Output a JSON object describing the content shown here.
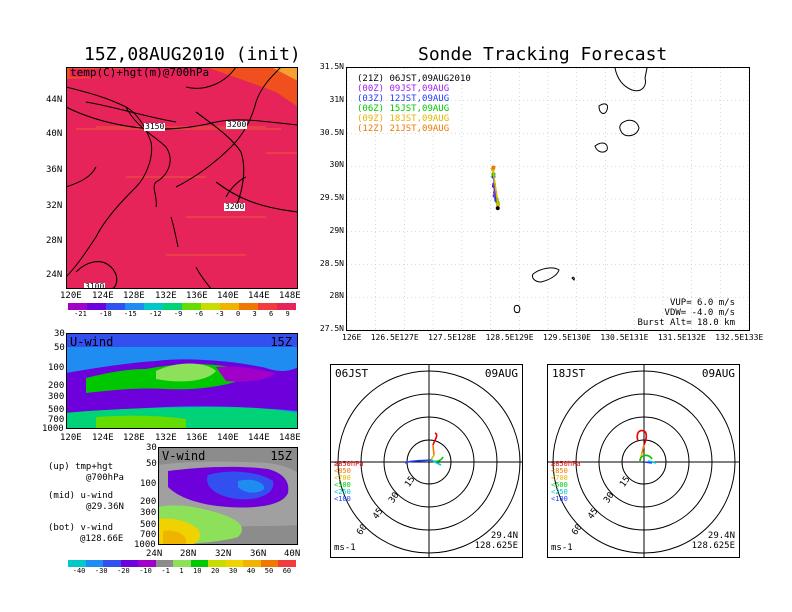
{
  "titles": {
    "left": "15Z,08AUG2010 (init)",
    "right": "Sonde Tracking Forecast"
  },
  "map_panel": {
    "label": "temp(C)+hgt(m)@700hPa",
    "contours": [
      "3150",
      "3200",
      "3200",
      "3100"
    ],
    "lat_ticks": [
      "44N",
      "40N",
      "36N",
      "32N",
      "28N",
      "24N"
    ],
    "lon_ticks": [
      "120E",
      "124E",
      "128E",
      "132E",
      "136E",
      "140E",
      "144E",
      "148E"
    ],
    "colorbar": [
      "-21",
      "-18",
      "-15",
      "-12",
      "-9",
      "-6",
      "-3",
      "0",
      "3",
      "6",
      "9"
    ],
    "colors": {
      "warm": "#e6245a",
      "hot": "#f0501e",
      "orange": "#f5a032"
    }
  },
  "uwind_panel": {
    "label": "U-wind",
    "time": "15Z",
    "p_ticks": [
      "30",
      "50",
      "100",
      "200",
      "300",
      "500",
      "700",
      "1000"
    ],
    "lon_ticks": [
      "120E",
      "124E",
      "128E",
      "132E",
      "136E",
      "140E",
      "144E",
      "148E"
    ]
  },
  "vwind_panel": {
    "label": "V-wind",
    "time": "15Z",
    "p_ticks": [
      "30",
      "50",
      "100",
      "200",
      "300",
      "500",
      "700",
      "1000"
    ],
    "lat_ticks": [
      "24N",
      "28N",
      "32N",
      "36N",
      "40N"
    ],
    "colorbar": [
      "-40",
      "-30",
      "-20",
      "-10",
      "-1",
      "1",
      "10",
      "20",
      "30",
      "40",
      "50",
      "60"
    ]
  },
  "legend_notes": [
    [
      "(up) tmp+hgt",
      "@700hPa"
    ],
    [
      "(mid) u-wind",
      "@29.36N"
    ],
    [
      "(bot) v-wind",
      "@128.66E"
    ]
  ],
  "track_panel": {
    "legend": [
      {
        "text": "(21Z) 06JST,09AUG2010",
        "color": "#000000"
      },
      {
        "text": "(00Z) 09JST,09AUG",
        "color": "#a020f0"
      },
      {
        "text": "(03Z) 12JST,09AUG",
        "color": "#1e3cff"
      },
      {
        "text": "(06Z) 15JST,09AUG",
        "color": "#00c800"
      },
      {
        "text": "(09Z) 18JST,09AUG",
        "color": "#e6b400"
      },
      {
        "text": "(12Z) 21JST,09AUG",
        "color": "#f07800"
      }
    ],
    "lat_ticks": [
      "31.5N",
      "31N",
      "30.5N",
      "30N",
      "29.5N",
      "29N",
      "28.5N",
      "28N",
      "27.5N"
    ],
    "lon_ticks": [
      "126E",
      "126.5E",
      "127E",
      "127.5E",
      "128E",
      "128.5E",
      "129E",
      "129.5E",
      "130E",
      "130.5E",
      "131E",
      "131.5E",
      "132E",
      "132.5E",
      "133E"
    ],
    "info": [
      "VUP=  6.0 m/s",
      "VDW= -4.0 m/s",
      "Burst Alt= 18.0 km"
    ]
  },
  "chart_data": {
    "type": "scatter",
    "title": "Sonde Tracking Forecast",
    "xlim": [
      126,
      133
    ],
    "ylim": [
      27.5,
      31.5
    ],
    "series": [
      {
        "name": "(21Z) 06JST,09AUG2010",
        "color": "#000000",
        "x": [
          128.625,
          128.63,
          128.6,
          128.58,
          128.56
        ],
        "y": [
          29.36,
          29.42,
          29.5,
          29.6,
          29.7
        ]
      },
      {
        "name": "(00Z) 09JST,09AUG",
        "color": "#a020f0",
        "x": [
          128.56,
          128.57
        ],
        "y": [
          29.72,
          29.55
        ]
      },
      {
        "name": "(03Z) 12JST,09AUG",
        "color": "#1e3cff",
        "x": [
          128.55,
          128.6
        ],
        "y": [
          29.84,
          29.48
        ]
      },
      {
        "name": "(06Z) 15JST,09AUG",
        "color": "#00c800",
        "x": [
          128.55,
          128.62
        ],
        "y": [
          29.88,
          29.45
        ]
      },
      {
        "name": "(09Z) 18JST,09AUG",
        "color": "#e6b400",
        "x": [
          128.54,
          128.63
        ],
        "y": [
          29.95,
          29.42
        ]
      },
      {
        "name": "(12Z) 21JST,09AUG",
        "color": "#f07800",
        "x": [
          128.55
        ],
        "y": [
          29.98
        ]
      }
    ]
  },
  "hodo_left": {
    "time": "06JST",
    "date": "09AUG",
    "levels": [
      "≥850hPa",
      "<850",
      "<700",
      "<500",
      "<250",
      "<100"
    ],
    "level_colors": [
      "#e60000",
      "#f07800",
      "#e6b400",
      "#00c800",
      "#00c8c8",
      "#1e3cff"
    ],
    "rings": [
      "15",
      "30",
      "45",
      "60"
    ],
    "unit": "ms-1",
    "lat": "29.4N",
    "lon": "128.625E"
  },
  "hodo_right": {
    "time": "18JST",
    "date": "09AUG",
    "levels": [
      "≥850hPa",
      "<850",
      "<700",
      "<500",
      "<250",
      "<100"
    ],
    "level_colors": [
      "#e60000",
      "#f07800",
      "#e6b400",
      "#00c800",
      "#00c8c8",
      "#1e3cff"
    ],
    "rings": [
      "15",
      "30",
      "45",
      "60"
    ],
    "unit": "ms-1",
    "lat": "29.4N",
    "lon": "128.625E"
  }
}
